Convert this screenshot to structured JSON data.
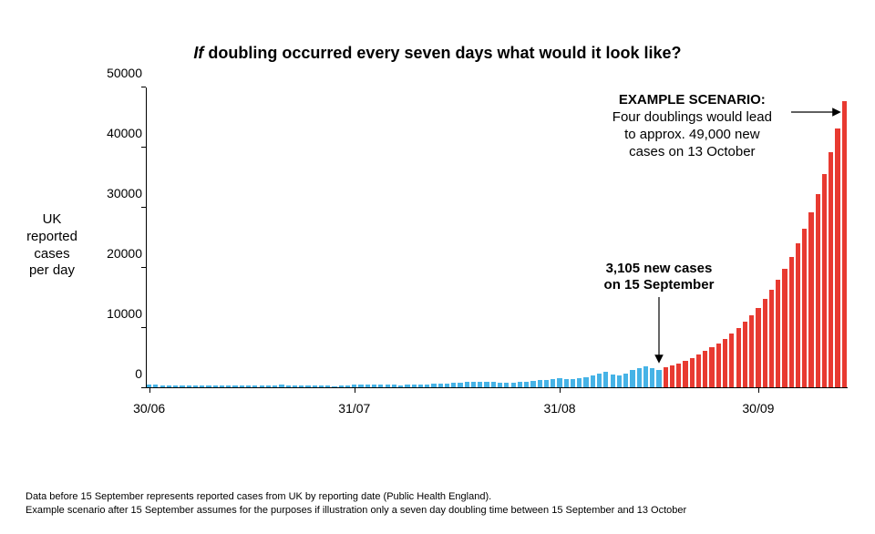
{
  "title_prefix_italic": "If",
  "title_rest": " doubling occurred every seven days what would it look like?",
  "y_axis_label": "UK\nreported\ncases\nper day",
  "chart": {
    "type": "bar",
    "ylim": [
      0,
      50000
    ],
    "ytick_step": 10000,
    "yticks": [
      0,
      10000,
      20000,
      30000,
      40000,
      50000
    ],
    "xticks": [
      {
        "index": 0,
        "label": "30/06"
      },
      {
        "index": 31,
        "label": "31/07"
      },
      {
        "index": 62,
        "label": "31/08"
      },
      {
        "index": 92,
        "label": "30/09"
      }
    ],
    "bar_width_ratio": 0.72,
    "colors": {
      "historical": "#46b3e6",
      "projection": "#e83a31",
      "axis": "#000000",
      "background": "#ffffff"
    },
    "title_fontsize": 18,
    "label_fontsize": 15,
    "tick_fontsize": 14,
    "n_bars": 106,
    "series": [
      {
        "name": "historical",
        "color_key": "historical",
        "start_index": 0,
        "values": [
          650,
          560,
          480,
          500,
          520,
          500,
          480,
          460,
          500,
          520,
          500,
          480,
          460,
          450,
          440,
          430,
          460,
          480,
          500,
          520,
          540,
          520,
          500,
          480,
          460,
          440,
          420,
          400,
          380,
          420,
          500,
          560,
          620,
          680,
          640,
          600,
          560,
          540,
          520,
          540,
          560,
          600,
          640,
          700,
          760,
          820,
          880,
          940,
          1000,
          1050,
          1100,
          1050,
          1000,
          950,
          900,
          950,
          1000,
          1100,
          1200,
          1300,
          1400,
          1500,
          1600,
          1550,
          1500,
          1600,
          1800,
          2100,
          2400,
          2700,
          2300,
          2100,
          2500,
          3000,
          3300,
          3600,
          3400,
          3105
        ]
      },
      {
        "name": "projection",
        "color_key": "projection",
        "start_index": 78,
        "values": [
          3423,
          3773,
          4159,
          4585,
          5055,
          5573,
          6144,
          6774,
          7468,
          8233,
          9077,
          10007,
          11033,
          12163,
          13410,
          14784,
          16299,
          17969,
          19811,
          21841,
          24080,
          26548,
          29269,
          32269,
          35576,
          39222,
          43242,
          47674
        ]
      }
    ]
  },
  "annotations": {
    "mid": {
      "line1": "3,105 new cases",
      "line2": "on 15 September",
      "points_to_index": 77
    },
    "right": {
      "header": "EXAMPLE SCENARIO:",
      "line1": "Four doublings would lead",
      "line2": "to approx. 49,000 new",
      "line3": "cases on 13 October",
      "points_to_index": 105
    }
  },
  "footnote_line1": "Data before 15 September represents reported cases from UK by reporting date (Public Health England).",
  "footnote_line2": "Example scenario after 15 September assumes for the purposes if illustration only a seven day doubling time between 15 September and 13 October"
}
